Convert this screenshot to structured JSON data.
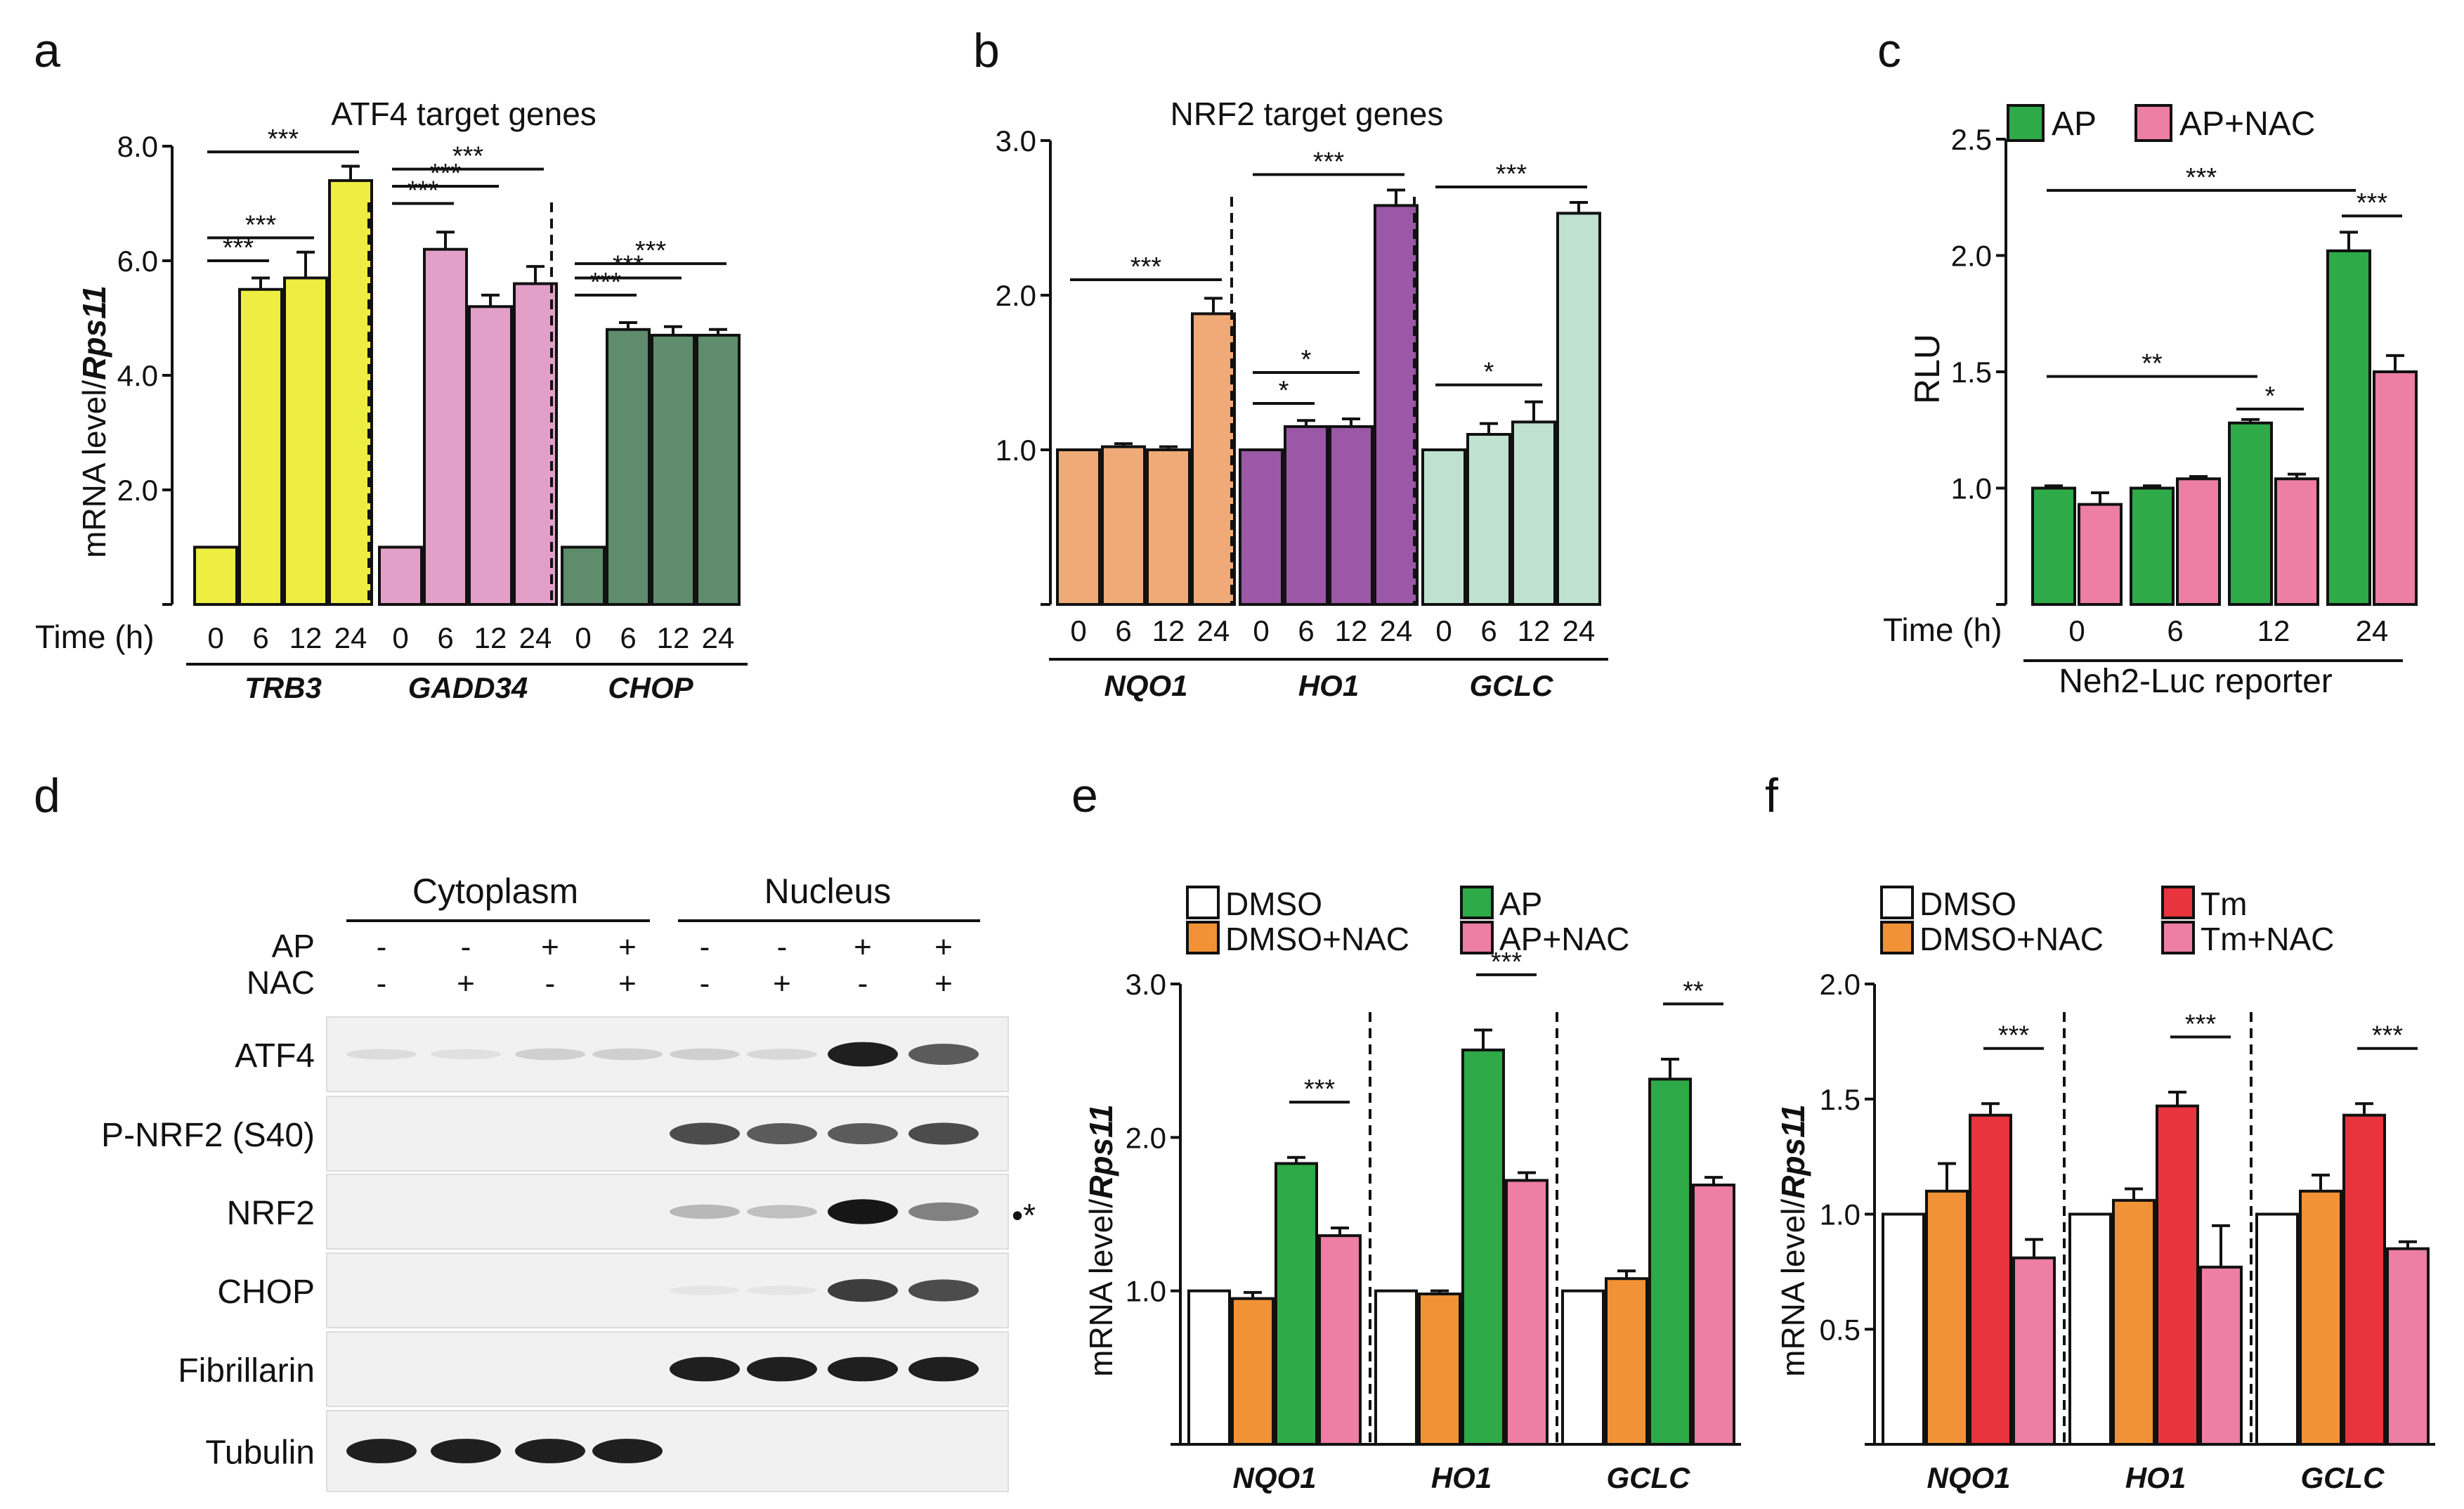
{
  "colors": {
    "trb3": "#eeee42",
    "gadd34": "#e2a0c8",
    "chop": "#5e8c6c",
    "nqo1": "#efaa78",
    "ho1": "#9a58a6",
    "gclc": "#bfe2d0",
    "ap": "#2eaa48",
    "ap_nac": "#ed7ea4",
    "dmso": "#ffffff",
    "dmso_nac": "#f29236",
    "tm": "#e8343c",
    "tm_nac": "#ed7ea4"
  },
  "chart_data": [
    {
      "panel": "a",
      "type": "bar",
      "title": "ATF4 target genes",
      "ylabel_main": "mRNA level/",
      "ylabel_ital": "Rps11",
      "ylim": [
        0,
        8
      ],
      "yticks": [
        "8.0",
        "6.0",
        "4.0",
        "2.0"
      ],
      "ytick_values": [
        8,
        6,
        4,
        2
      ],
      "xlabel": "Time (h)",
      "timepoints": [
        "0",
        "6",
        "12",
        "24"
      ],
      "groups": [
        {
          "name": "TRB3",
          "values": [
            1.0,
            5.5,
            5.7,
            7.4
          ],
          "errors": [
            0,
            0.2,
            0.45,
            0.25
          ],
          "color_key": "trb3"
        },
        {
          "name": "GADD34",
          "values": [
            1.0,
            6.2,
            5.2,
            5.6
          ],
          "errors": [
            0,
            0.3,
            0.2,
            0.3
          ],
          "color_key": "gadd34"
        },
        {
          "name": "CHOP",
          "values": [
            1.0,
            4.8,
            4.7,
            4.7
          ],
          "errors": [
            0,
            0.12,
            0.15,
            0.1
          ],
          "color_key": "chop"
        }
      ],
      "significance": [
        "***",
        "***",
        "***",
        "***",
        "***",
        "***",
        "***",
        "***",
        "***"
      ]
    },
    {
      "panel": "b",
      "type": "bar",
      "title": "NRF2 target genes",
      "ylim": [
        0,
        3
      ],
      "yticks": [
        "3.0",
        "2.0",
        "1.0"
      ],
      "ytick_values": [
        3,
        2,
        1
      ],
      "timepoints": [
        "0",
        "6",
        "12",
        "24"
      ],
      "groups": [
        {
          "name": "NQO1",
          "values": [
            1.0,
            1.02,
            1.0,
            1.88
          ],
          "errors": [
            0,
            0.02,
            0.02,
            0.1
          ],
          "color_key": "nqo1"
        },
        {
          "name": "HO1",
          "values": [
            1.0,
            1.15,
            1.15,
            2.58
          ],
          "errors": [
            0,
            0.04,
            0.05,
            0.1
          ],
          "color_key": "ho1"
        },
        {
          "name": "GCLC",
          "values": [
            1.0,
            1.1,
            1.18,
            2.53
          ],
          "errors": [
            0,
            0.07,
            0.13,
            0.07
          ],
          "color_key": "gclc"
        }
      ],
      "significance": [
        "***",
        "*",
        "*",
        "***",
        "*",
        "***"
      ]
    },
    {
      "panel": "c",
      "type": "bar",
      "ylabel": "RLU",
      "ylim": [
        0.5,
        2.5
      ],
      "yticks": [
        "2.5",
        "2.0",
        "1.5",
        "1.0"
      ],
      "ytick_values": [
        2.5,
        2.0,
        1.5,
        1.0
      ],
      "xlabel": "Time (h)",
      "categories": [
        "0",
        "6",
        "12",
        "24"
      ],
      "series": [
        {
          "name": "AP",
          "values": [
            1.0,
            1.0,
            1.28,
            2.02
          ],
          "errors": [
            0.01,
            0.01,
            0.015,
            0.08
          ],
          "color_key": "ap"
        },
        {
          "name": "AP+NAC",
          "values": [
            0.93,
            1.04,
            1.04,
            1.5
          ],
          "errors": [
            0.05,
            0.01,
            0.02,
            0.07
          ],
          "color_key": "ap_nac"
        }
      ],
      "subtitle": "Neh2-Luc reporter",
      "significance": [
        "***",
        "***",
        "**",
        "*"
      ]
    },
    {
      "panel": "e",
      "type": "bar",
      "ylim": [
        0,
        3
      ],
      "yticks": [
        "3.0",
        "2.0",
        "1.0"
      ],
      "ytick_values": [
        3,
        2,
        1
      ],
      "categories": [
        "NQO1",
        "HO1",
        "GCLC"
      ],
      "series": [
        {
          "name": "DMSO",
          "values": [
            1.0,
            1.0,
            1.0
          ],
          "errors": [
            0,
            0,
            0
          ],
          "color_key": "dmso"
        },
        {
          "name": "DMSO+NAC",
          "values": [
            0.95,
            0.98,
            1.08
          ],
          "errors": [
            0.04,
            0.02,
            0.05
          ],
          "color_key": "dmso_nac"
        },
        {
          "name": "AP",
          "values": [
            1.83,
            2.57,
            2.38
          ],
          "errors": [
            0.04,
            0.13,
            0.13
          ],
          "color_key": "ap"
        },
        {
          "name": "AP+NAC",
          "values": [
            1.36,
            1.72,
            1.69
          ],
          "errors": [
            0.05,
            0.05,
            0.05
          ],
          "color_key": "ap_nac"
        }
      ],
      "significance": [
        "***",
        "***",
        "**"
      ]
    },
    {
      "panel": "f",
      "type": "bar",
      "ylim": [
        0,
        2
      ],
      "yticks": [
        "2.0",
        "1.5",
        "1.0",
        "0.5"
      ],
      "ytick_values": [
        2.0,
        1.5,
        1.0,
        0.5
      ],
      "categories": [
        "NQO1",
        "HO1",
        "GCLC"
      ],
      "series": [
        {
          "name": "DMSO",
          "values": [
            1.0,
            1.0,
            1.0
          ],
          "errors": [
            0,
            0,
            0
          ],
          "color_key": "dmso"
        },
        {
          "name": "DMSO+NAC",
          "values": [
            1.1,
            1.06,
            1.1
          ],
          "errors": [
            0.12,
            0.05,
            0.07
          ],
          "color_key": "dmso_nac"
        },
        {
          "name": "Tm",
          "values": [
            1.43,
            1.47,
            1.43
          ],
          "errors": [
            0.05,
            0.06,
            0.05
          ],
          "color_key": "tm"
        },
        {
          "name": "Tm+NAC",
          "values": [
            0.81,
            0.77,
            0.85
          ],
          "errors": [
            0.08,
            0.18,
            0.03
          ],
          "color_key": "tm_nac"
        }
      ],
      "significance": [
        "***",
        "***",
        "***"
      ]
    }
  ],
  "blot": {
    "panel": "d",
    "header_cytoplasm": "Cytoplasm",
    "header_nucleus": "Nucleus",
    "treatments": [
      {
        "name": "AP",
        "signs": [
          "-",
          "-",
          "+",
          "+",
          "-",
          "-",
          "+",
          "+"
        ]
      },
      {
        "name": "NAC",
        "signs": [
          "-",
          "+",
          "-",
          "+",
          "-",
          "+",
          "-",
          "+"
        ]
      }
    ],
    "rows": [
      {
        "name": "ATF4",
        "intensity": [
          0.12,
          0.1,
          0.2,
          0.2,
          0.2,
          0.15,
          0.95,
          0.75
        ]
      },
      {
        "name": "P-NRF2 (S40)",
        "intensity": [
          0,
          0,
          0,
          0,
          0.8,
          0.75,
          0.75,
          0.8
        ]
      },
      {
        "name": "NRF2",
        "intensity": [
          0,
          0,
          0,
          0,
          0.35,
          0.3,
          0.98,
          0.6
        ]
      },
      {
        "name": "CHOP",
        "intensity": [
          0,
          0,
          0,
          0,
          0.05,
          0.05,
          0.85,
          0.8
        ]
      },
      {
        "name": "Fibrillarin",
        "intensity": [
          0,
          0,
          0,
          0,
          0.95,
          0.95,
          0.95,
          0.95
        ]
      },
      {
        "name": "Tubulin",
        "intensity": [
          0.95,
          0.95,
          0.95,
          0.95,
          0,
          0,
          0,
          0
        ]
      }
    ],
    "nrf2_marker": "*"
  },
  "panel_labels": [
    "a",
    "b",
    "c",
    "d",
    "e",
    "f"
  ]
}
